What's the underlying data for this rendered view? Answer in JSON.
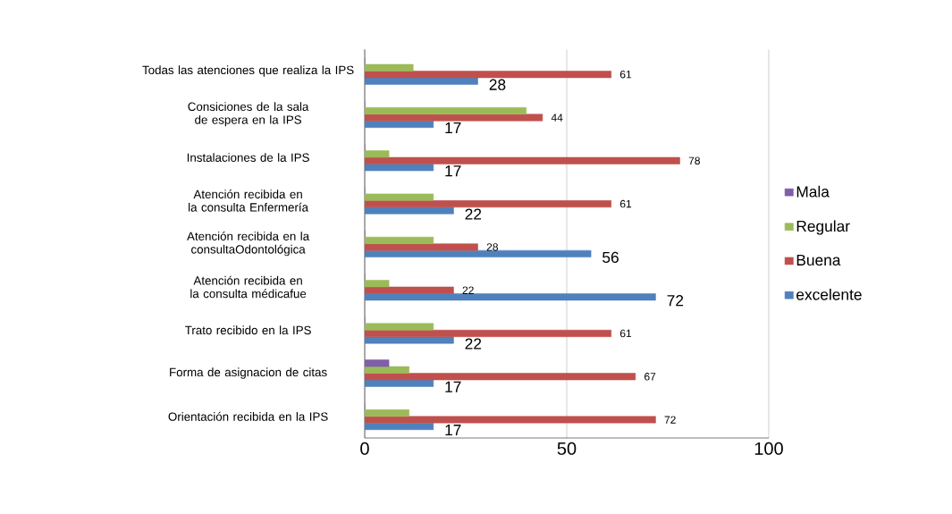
{
  "chart_data": {
    "type": "bar",
    "orientation": "horizontal",
    "categories": [
      "Todas las atenciones que realiza la IPS",
      "Consiciones de  la sala de espera en la IPS",
      "Instalaciones de la IPS",
      "Atención recibida en la consulta Enfermería",
      "Atención recibida en la consultaOdontológica",
      "Atención recibida en la consulta médicafue",
      "Trato recibido en la IPS",
      "Forma de asignacion de citas",
      "Orientación recibida en la IPS"
    ],
    "series": [
      {
        "name": "Mala",
        "color": "#7f5fa8",
        "values": [
          0,
          0,
          0,
          0,
          0,
          0,
          0,
          6,
          0
        ]
      },
      {
        "name": "Regular",
        "color": "#9bbb59",
        "values": [
          12,
          40,
          6,
          17,
          17,
          6,
          17,
          11,
          11
        ]
      },
      {
        "name": "Buena",
        "color": "#c0504d",
        "values": [
          61,
          44,
          78,
          61,
          28,
          22,
          61,
          67,
          72
        ],
        "value_labels": [
          "61",
          "44",
          "78",
          "61",
          "28",
          "22",
          "61",
          "67",
          "72"
        ]
      },
      {
        "name": "excelente",
        "color": "#4f81bd",
        "values": [
          28,
          17,
          17,
          22,
          56,
          72,
          22,
          17,
          17
        ],
        "value_labels": [
          "28",
          "17",
          "17",
          "22",
          "56",
          "72",
          "22",
          "17",
          "17"
        ]
      }
    ],
    "xlim": [
      0,
      100
    ],
    "xticks": [
      0,
      50,
      100
    ],
    "grid": "x",
    "legend": "right"
  }
}
